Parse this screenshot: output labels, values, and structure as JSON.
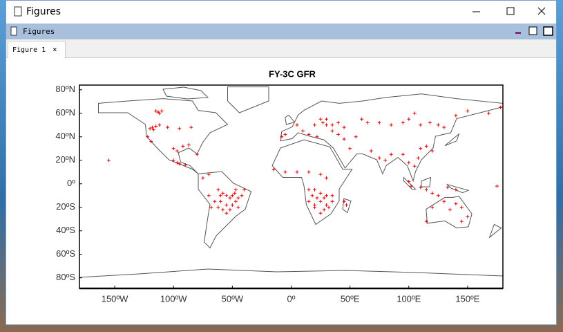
{
  "window": {
    "title": "Figures"
  },
  "toolbar": {
    "title": "Figures"
  },
  "tab": {
    "label": "Figure 1",
    "close": "×"
  },
  "chart_data": {
    "type": "scatter",
    "title": "FY-3C GFR",
    "color": "#e00000",
    "marker": "+",
    "xlim": [
      -180,
      180
    ],
    "ylim": [
      -89,
      84
    ],
    "xticks": [
      {
        "value": -150,
        "label": "150ºW"
      },
      {
        "value": -100,
        "label": "100ºW"
      },
      {
        "value": -50,
        "label": "50ºW"
      },
      {
        "value": 0,
        "label": "0º"
      },
      {
        "value": 50,
        "label": "50ºE"
      },
      {
        "value": 100,
        "label": "100ºE"
      },
      {
        "value": 150,
        "label": "150ºE"
      }
    ],
    "yticks": [
      {
        "value": 80,
        "label": "80ºN"
      },
      {
        "value": 60,
        "label": "60ºN"
      },
      {
        "value": 40,
        "label": "40ºN"
      },
      {
        "value": 20,
        "label": "20ºN"
      },
      {
        "value": 0,
        "label": "0º"
      },
      {
        "value": -20,
        "label": "20ºS"
      },
      {
        "value": -40,
        "label": "40ºS"
      },
      {
        "value": -60,
        "label": "60ºS"
      },
      {
        "value": -80,
        "label": "80ºS"
      }
    ],
    "x": [
      -115,
      -112,
      -113,
      -110,
      -118,
      -115,
      -120,
      -112,
      -117,
      -122,
      -119,
      -105,
      -95,
      -85,
      -100,
      -97,
      -92,
      -87,
      -80,
      -100,
      -97,
      -95,
      -90,
      -155,
      -75,
      -70,
      -62,
      -58,
      -55,
      -52,
      -50,
      -48,
      -45,
      -60,
      -65,
      -55,
      -50,
      -47,
      -42,
      -58,
      -52,
      -62,
      -68,
      -45,
      -55,
      -47,
      -40,
      -70,
      -60,
      -15,
      -5,
      5,
      15,
      25,
      30,
      15,
      20,
      25,
      30,
      18,
      22,
      28,
      35,
      15,
      20,
      25,
      30,
      35,
      20,
      28,
      32,
      47,
      45,
      25,
      -8,
      -5,
      5,
      10,
      15,
      22,
      27,
      30,
      35,
      40,
      45,
      25,
      30,
      20,
      35,
      40,
      45,
      50,
      55,
      60,
      65,
      75,
      85,
      95,
      110,
      118,
      125,
      130,
      140,
      150,
      105,
      100,
      68,
      75,
      80,
      85,
      95,
      100,
      105,
      110,
      115,
      120,
      108,
      100,
      102,
      110,
      115,
      120,
      125,
      133,
      140,
      120,
      130,
      140,
      135,
      145,
      115,
      145,
      150,
      175,
      178,
      168
    ],
    "values": [
      62,
      60,
      61,
      62,
      48,
      49,
      47,
      50,
      46,
      40,
      36,
      48,
      47,
      48,
      30,
      28,
      32,
      33,
      25,
      20,
      18,
      17,
      16,
      20,
      5,
      8,
      -5,
      -8,
      -10,
      -12,
      -10,
      -8,
      -12,
      -15,
      -15,
      -18,
      -18,
      -15,
      -10,
      -22,
      -22,
      -20,
      -20,
      -20,
      -25,
      -5,
      -5,
      -10,
      -10,
      12,
      10,
      10,
      10,
      8,
      5,
      -5,
      -5,
      -8,
      -10,
      -10,
      -12,
      -12,
      -10,
      -15,
      -18,
      -15,
      -18,
      -15,
      -20,
      -22,
      -20,
      -18,
      -15,
      -25,
      40,
      42,
      50,
      45,
      42,
      40,
      52,
      50,
      50,
      52,
      48,
      55,
      55,
      50,
      45,
      42,
      38,
      30,
      40,
      55,
      52,
      52,
      50,
      52,
      50,
      52,
      50,
      48,
      58,
      62,
      60,
      55,
      28,
      22,
      20,
      25,
      25,
      18,
      15,
      30,
      32,
      28,
      22,
      2,
      -2,
      -3,
      -5,
      -8,
      -10,
      -3,
      -5,
      -20,
      -15,
      -17,
      -22,
      -20,
      -32,
      -32,
      -28,
      -2,
      65,
      60
    ]
  }
}
